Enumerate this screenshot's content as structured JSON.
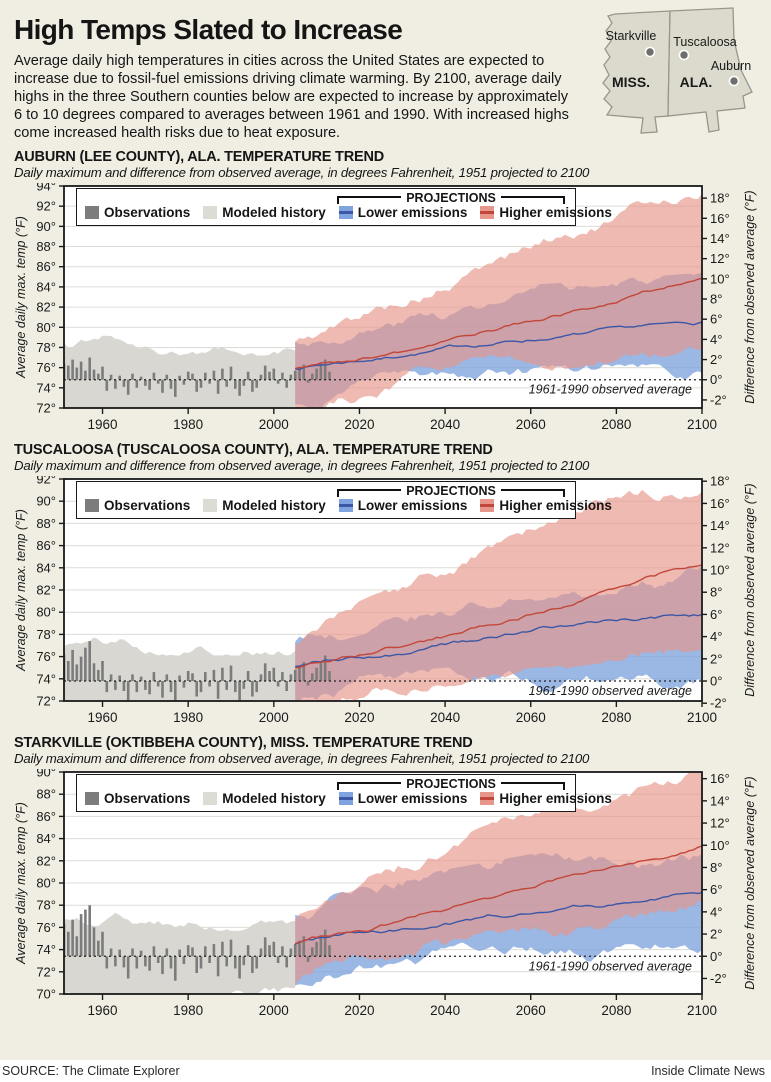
{
  "page": {
    "title": "High Temps Slated to Increase",
    "intro": "Average daily high temperatures in cities across the United States are expected to increase due to fossil-fuel emissions driving climate warming. By 2100, average daily highs in the three Southern counties below are expected to increase by approximately 6 to 10 degrees compared to averages between 1961 and 1990. With increased highs come increased health risks due to heat exposure."
  },
  "map": {
    "states": [
      "MISS.",
      "ALA."
    ],
    "cities": [
      {
        "name": "Starkville"
      },
      {
        "name": "Tuscaloosa"
      },
      {
        "name": "Auburn"
      }
    ]
  },
  "legend": {
    "observations": "Observations",
    "modeled": "Modeled history",
    "projections": "PROJECTIONS",
    "lower": "Lower emissions",
    "higher": "Higher emissions"
  },
  "footer": {
    "source": "SOURCE: The Climate Explorer",
    "credit": "Inside Climate News"
  },
  "colors": {
    "background": "#f0eee3",
    "plot_bg": "#ffffff",
    "grid": "#dcdcd7",
    "history_band": "#d8d7d1",
    "history_swatch": "#dcdbd4",
    "obs_bar": "#7c7c7c",
    "lower_band": "#7fa3dc",
    "lower_line": "#3c57a6",
    "higher_band": "#e6968a",
    "higher_line": "#c2473a",
    "axis": "#1a1a1a",
    "map_fill": "#dbdacd",
    "map_stroke": "#97968c",
    "city_dot": "#6e6e6e"
  },
  "chart_data": [
    {
      "type": "area",
      "title": "AUBURN (LEE COUNTY), ALA. TEMPERATURE TREND",
      "subtitle": "Daily maximum and difference from observed average, in degrees Fahrenheit, 1951 projected to 2100",
      "x_range": [
        1951,
        2100
      ],
      "x_ticks": [
        1960,
        1980,
        2000,
        2020,
        2040,
        2060,
        2080,
        2100
      ],
      "left_axis": {
        "label": "Average daily max. temp (°F)",
        "min": 72,
        "max": 94,
        "step": 2
      },
      "right_axis": {
        "label": "Difference from observed average (°F)",
        "min": -2,
        "max": 18,
        "step": 2
      },
      "baseline_f": 74.8,
      "baseline_label": "1961-1990 observed average",
      "modeled_history": {
        "years": [
          1951,
          2005
        ],
        "band_upper": 3.5,
        "band_lower": -3.3
      },
      "observations": {
        "start_year": 1951,
        "anomalies": [
          1.6,
          1.4,
          2.0,
          1.2,
          1.8,
          0.9,
          2.2,
          1.0,
          0.6,
          1.3,
          -1.1,
          0.5,
          -0.9,
          0.4,
          -0.7,
          -1.5,
          0.6,
          -0.8,
          0.3,
          -0.6,
          -1.0,
          0.7,
          -0.4,
          -1.3,
          0.5,
          -0.9,
          -1.7,
          0.4,
          -0.5,
          0.8,
          0.6,
          -1.2,
          -0.8,
          0.7,
          -0.4,
          0.9,
          -1.4,
          1.1,
          -0.7,
          1.3,
          -0.9,
          -1.6,
          -0.6,
          0.8,
          -1.2,
          -0.8,
          0.5,
          1.4,
          0.8,
          1.1,
          -0.4,
          0.7,
          -0.8,
          0.5,
          0.9,
          1.2,
          1.5,
          -0.3,
          0.6,
          1.1,
          1.6,
          2.0,
          0.8
        ]
      },
      "projections": {
        "keyframe_years": [
          2005,
          2020,
          2040,
          2060,
          2080,
          2100
        ],
        "lower": {
          "mean": [
            1.2,
            2.1,
            3.2,
            4.2,
            4.9,
            5.5
          ],
          "upper": [
            3.6,
            5.2,
            6.8,
            8.2,
            8.8,
            9.4
          ],
          "lower": [
            -2.8,
            -0.6,
            0.0,
            0.2,
            0.3,
            0.4
          ]
        },
        "higher": {
          "mean": [
            1.2,
            2.3,
            4.0,
            6.0,
            8.0,
            10.0
          ],
          "upper": [
            3.6,
            5.8,
            9.2,
            12.8,
            15.8,
            18.6
          ],
          "lower": [
            -2.8,
            -0.9,
            0.6,
            1.8,
            2.9,
            3.9
          ]
        }
      }
    },
    {
      "type": "area",
      "title": "TUSCALOOSA (TUSCALOOSA COUNTY), ALA. TEMPERATURE TREND",
      "subtitle": "Daily maximum and difference from observed average, in degrees Fahrenheit, 1951 projected to 2100",
      "x_range": [
        1951,
        2100
      ],
      "x_ticks": [
        1960,
        1980,
        2000,
        2020,
        2040,
        2060,
        2080,
        2100
      ],
      "left_axis": {
        "label": "Average daily max. temp (°F)",
        "min": 72,
        "max": 92,
        "step": 2
      },
      "right_axis": {
        "label": "Difference from observed average (°F)",
        "min": -2,
        "max": 18,
        "step": 2
      },
      "baseline_f": 73.8,
      "baseline_label": "1961-1990 observed average",
      "modeled_history": {
        "years": [
          1951,
          2005
        ],
        "band_upper": 3.4,
        "band_lower": -3.2
      },
      "observations": {
        "start_year": 1951,
        "anomalies": [
          2.4,
          1.8,
          2.8,
          1.5,
          2.2,
          3.0,
          3.6,
          1.6,
          1.0,
          1.8,
          -1.0,
          0.6,
          -0.8,
          0.5,
          -0.9,
          -1.8,
          0.6,
          -1.0,
          0.4,
          -0.8,
          -1.2,
          0.8,
          -0.5,
          -1.5,
          0.6,
          -1.0,
          -2.0,
          0.5,
          -0.6,
          0.9,
          0.7,
          -1.4,
          -1.0,
          0.8,
          -0.5,
          1.0,
          -1.6,
          1.2,
          -0.8,
          1.4,
          -1.0,
          -1.9,
          -0.7,
          0.9,
          -1.4,
          -1.0,
          0.6,
          1.6,
          0.9,
          1.2,
          -0.5,
          0.8,
          -0.9,
          0.6,
          1.0,
          1.3,
          1.7,
          -0.4,
          0.7,
          1.2,
          1.8,
          2.3,
          0.9
        ]
      },
      "projections": {
        "keyframe_years": [
          2005,
          2020,
          2040,
          2060,
          2080,
          2100
        ],
        "lower": {
          "mean": [
            1.2,
            2.2,
            3.3,
            4.4,
            5.2,
            5.8
          ],
          "upper": [
            3.7,
            5.3,
            7.0,
            8.4,
            9.0,
            9.6
          ],
          "lower": [
            -2.7,
            -0.7,
            0.0,
            0.2,
            0.3,
            0.4
          ]
        },
        "higher": {
          "mean": [
            1.2,
            2.4,
            4.1,
            6.2,
            8.3,
            10.4
          ],
          "upper": [
            3.7,
            6.0,
            9.4,
            13.0,
            16.2,
            18.0
          ],
          "lower": [
            -2.7,
            -1.0,
            0.6,
            1.9,
            3.0,
            4.0
          ]
        }
      }
    },
    {
      "type": "area",
      "title": "STARKVILLE (OKTIBBEHA COUNTY), MISS. TEMPERATURE TREND",
      "subtitle": "Daily maximum and difference from observed average, in degrees Fahrenheit, 1951 projected to 2100",
      "x_range": [
        1951,
        2100
      ],
      "x_ticks": [
        1960,
        1980,
        2000,
        2020,
        2040,
        2060,
        2080,
        2100
      ],
      "left_axis": {
        "label": "Average daily max. temp (°F)",
        "min": 70,
        "max": 90,
        "step": 2
      },
      "right_axis": {
        "label": "Difference from observed average (°F)",
        "min": -2,
        "max": 16,
        "step": 2
      },
      "baseline_f": 73.4,
      "baseline_label": "1961-1990 observed average",
      "modeled_history": {
        "years": [
          1951,
          2005
        ],
        "band_upper": 3.4,
        "band_lower": -3.3
      },
      "observations": {
        "start_year": 1951,
        "anomalies": [
          2.9,
          2.2,
          3.3,
          1.8,
          3.8,
          4.2,
          4.6,
          2.6,
          1.4,
          2.2,
          -1.1,
          0.7,
          -0.9,
          0.6,
          -1.0,
          -2.0,
          0.7,
          -1.1,
          0.5,
          -0.9,
          -1.3,
          0.9,
          -0.6,
          -1.6,
          0.7,
          -1.1,
          -2.2,
          0.6,
          -0.7,
          1.0,
          0.8,
          -1.5,
          -1.1,
          0.9,
          -0.6,
          1.1,
          -1.8,
          1.3,
          -0.9,
          1.5,
          -1.1,
          -2.0,
          -0.8,
          1.0,
          -1.5,
          -1.1,
          0.7,
          1.7,
          1.0,
          1.3,
          -0.6,
          0.9,
          -1.0,
          0.7,
          1.1,
          1.4,
          1.8,
          -0.5,
          0.8,
          1.3,
          1.9,
          2.4,
          1.0
        ]
      },
      "projections": {
        "keyframe_years": [
          2005,
          2020,
          2040,
          2060,
          2080,
          2100
        ],
        "lower": {
          "mean": [
            1.2,
            2.0,
            3.1,
            4.1,
            4.8,
            5.4
          ],
          "upper": [
            3.5,
            5.0,
            6.6,
            8.0,
            8.6,
            9.2
          ],
          "lower": [
            -2.7,
            -0.7,
            0.0,
            0.2,
            0.3,
            0.4
          ]
        },
        "higher": {
          "mean": [
            1.2,
            2.2,
            3.9,
            6.0,
            8.0,
            9.8
          ],
          "upper": [
            3.5,
            5.6,
            9.0,
            12.4,
            15.0,
            16.4
          ],
          "lower": [
            -2.7,
            -0.9,
            0.5,
            1.7,
            2.8,
            3.8
          ]
        }
      }
    }
  ]
}
